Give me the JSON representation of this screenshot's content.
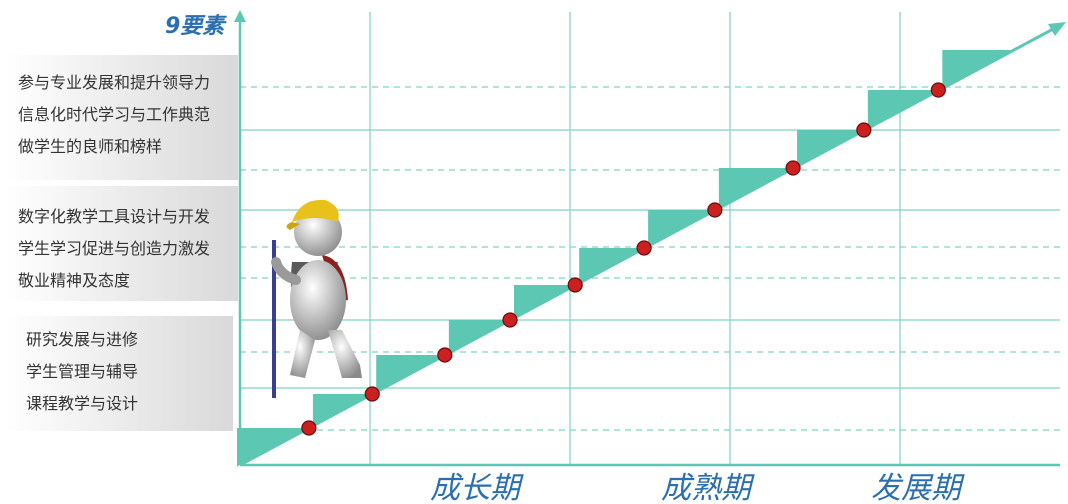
{
  "axis_label": "9要素",
  "groups": [
    {
      "items": [
        "参与专业发展和提升领导力",
        "信息化时代学习与工作典范",
        "做学生的良师和榜样"
      ]
    },
    {
      "items": [
        "数字化教学工具设计与开发",
        "学生学习促进与创造力激发",
        "敬业精神及态度"
      ]
    },
    {
      "items": [
        "研究发展与进修",
        "学生管理与辅导",
        "课程教学与设计"
      ]
    }
  ],
  "stages": [
    "成长期",
    "成熟期",
    "发展期"
  ]
}
